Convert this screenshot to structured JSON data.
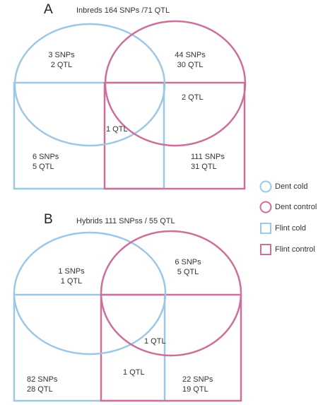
{
  "colors": {
    "blue": "#9cc8e6",
    "pink": "#cc6f9b"
  },
  "panelA": {
    "letter": "A",
    "title": "Inbreds 164 SNPs /71 QTL",
    "dent_cold_only": [
      "3 SNPs",
      "2 QTL"
    ],
    "dent_control_only": [
      "44 SNPs",
      "30 QTL"
    ],
    "dent_control_flint_control": "2 QTL",
    "center": "1 QTL",
    "flint_cold_only": [
      "6 SNPs",
      "5 QTL"
    ],
    "flint_control_only": [
      "111 SNPs",
      "31 QTL"
    ]
  },
  "panelB": {
    "letter": "B",
    "title": "Hybrids 111 SNPss / 55 QTL",
    "dent_cold_only": [
      "1 SNPs",
      "1 QTL"
    ],
    "dent_control_only": [
      "6 SNPs",
      "5 QTL"
    ],
    "center": "1 QTL",
    "flint_overlap": "1 QTL",
    "flint_cold_only": [
      "82 SNPs",
      "28 QTL"
    ],
    "flint_control_only": [
      "22 SNPs",
      "19 QTL"
    ]
  },
  "legend": [
    {
      "label": "Dent cold",
      "shape": "circle",
      "color": "blue"
    },
    {
      "label": "Dent control",
      "shape": "circle",
      "color": "pink"
    },
    {
      "label": "Flint cold",
      "shape": "square",
      "color": "blue"
    },
    {
      "label": "Flint control",
      "shape": "square",
      "color": "pink"
    }
  ]
}
